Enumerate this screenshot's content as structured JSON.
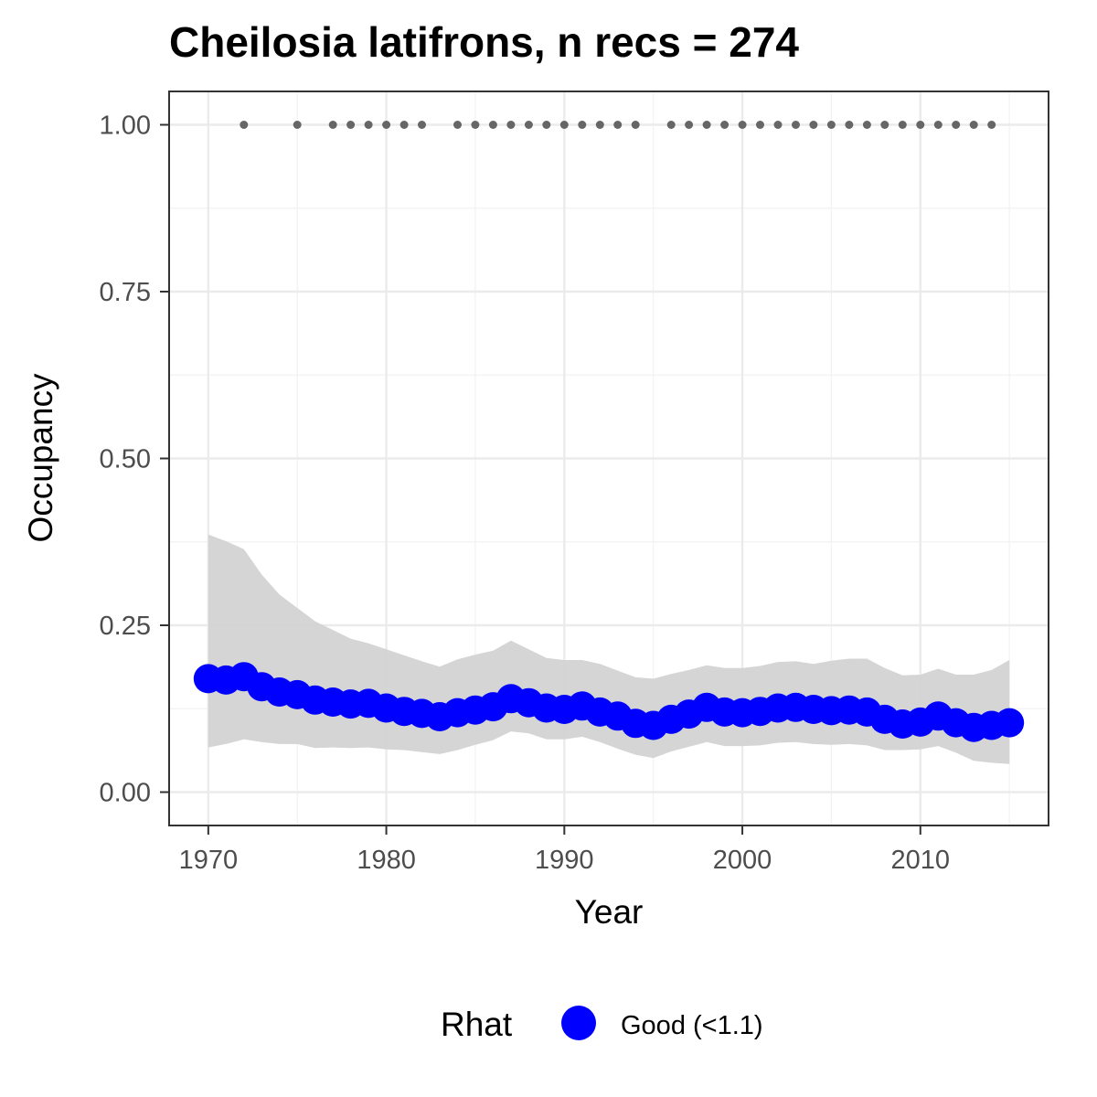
{
  "chart_data": {
    "type": "line",
    "title": "Cheilosia latifrons, n recs = 274",
    "xlabel": "Year",
    "ylabel": "Occupancy",
    "xlim": [
      1967.8,
      2017.2
    ],
    "ylim": [
      -0.05,
      1.05
    ],
    "xticks": [
      1970,
      1980,
      1990,
      2000,
      2010
    ],
    "xtick_labels": [
      "1970",
      "1980",
      "1990",
      "2000",
      "2010"
    ],
    "yticks": [
      0,
      0.25,
      0.5,
      0.75,
      1.0
    ],
    "ytick_labels": [
      "0.00",
      "0.25",
      "0.50",
      "0.75",
      "1.00"
    ],
    "grid": true,
    "legend": {
      "title": "Rhat",
      "position": "bottom",
      "entries": [
        {
          "label": "Good (<1.1)",
          "color": "#0000ff"
        }
      ]
    },
    "x": [
      1970,
      1971,
      1972,
      1973,
      1974,
      1975,
      1976,
      1977,
      1978,
      1979,
      1980,
      1981,
      1982,
      1983,
      1984,
      1985,
      1986,
      1987,
      1988,
      1989,
      1990,
      1991,
      1992,
      1993,
      1994,
      1995,
      1996,
      1997,
      1998,
      1999,
      2000,
      2001,
      2002,
      2003,
      2004,
      2005,
      2006,
      2007,
      2008,
      2009,
      2010,
      2011,
      2012,
      2013,
      2014,
      2015
    ],
    "series": [
      {
        "name": "Good (<1.1)",
        "color": "#0000ff",
        "values": [
          0.17,
          0.168,
          0.173,
          0.158,
          0.15,
          0.146,
          0.138,
          0.135,
          0.132,
          0.133,
          0.126,
          0.121,
          0.118,
          0.113,
          0.119,
          0.123,
          0.128,
          0.14,
          0.134,
          0.126,
          0.124,
          0.129,
          0.12,
          0.114,
          0.103,
          0.1,
          0.109,
          0.117,
          0.127,
          0.12,
          0.119,
          0.121,
          0.126,
          0.127,
          0.124,
          0.122,
          0.123,
          0.12,
          0.109,
          0.102,
          0.105,
          0.114,
          0.104,
          0.097,
          0.1,
          0.104
        ]
      }
    ],
    "ci_lower": [
      0.067,
      0.072,
      0.079,
      0.075,
      0.072,
      0.072,
      0.066,
      0.067,
      0.066,
      0.067,
      0.064,
      0.063,
      0.06,
      0.057,
      0.063,
      0.071,
      0.078,
      0.091,
      0.088,
      0.079,
      0.079,
      0.083,
      0.075,
      0.065,
      0.056,
      0.051,
      0.061,
      0.068,
      0.075,
      0.069,
      0.069,
      0.07,
      0.074,
      0.075,
      0.072,
      0.071,
      0.072,
      0.07,
      0.063,
      0.063,
      0.064,
      0.069,
      0.059,
      0.047,
      0.044,
      0.042
    ],
    "ci_upper": [
      0.386,
      0.376,
      0.364,
      0.326,
      0.296,
      0.276,
      0.256,
      0.243,
      0.23,
      0.223,
      0.214,
      0.205,
      0.196,
      0.188,
      0.199,
      0.206,
      0.212,
      0.227,
      0.214,
      0.201,
      0.198,
      0.198,
      0.192,
      0.182,
      0.172,
      0.17,
      0.177,
      0.183,
      0.19,
      0.186,
      0.186,
      0.189,
      0.195,
      0.196,
      0.192,
      0.197,
      0.2,
      0.2,
      0.186,
      0.175,
      0.176,
      0.185,
      0.176,
      0.176,
      0.183,
      0.198
    ],
    "record_years": [
      1972,
      1975,
      1977,
      1978,
      1979,
      1980,
      1981,
      1982,
      1984,
      1985,
      1986,
      1987,
      1988,
      1989,
      1990,
      1991,
      1992,
      1993,
      1994,
      1996,
      1997,
      1998,
      1999,
      2000,
      2001,
      2002,
      2003,
      2004,
      2005,
      2006,
      2007,
      2008,
      2009,
      2010,
      2011,
      2012,
      2013,
      2014
    ],
    "record_value": 1.0,
    "record_color": "#666666",
    "ci_color": "#d3d3d3"
  }
}
